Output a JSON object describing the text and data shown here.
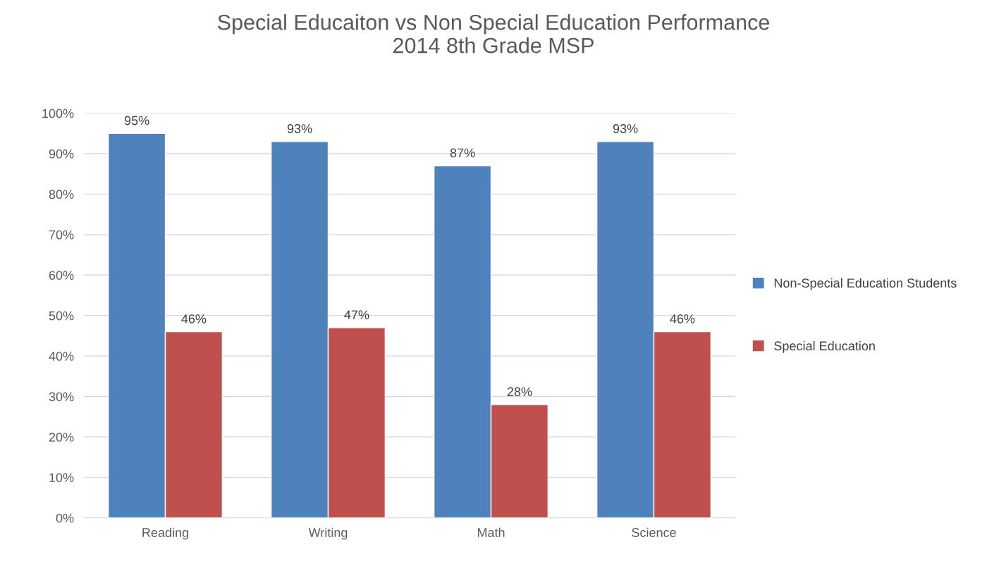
{
  "chart_data": {
    "type": "bar",
    "title": "Special Educaiton vs Non Special Education Performance\n2014 8th Grade MSP",
    "categories": [
      "Reading",
      "Writing",
      "Math",
      "Science"
    ],
    "series": [
      {
        "name": "Non-Special Education Students",
        "color": "#4f81bd",
        "values": [
          95,
          93,
          87,
          93
        ],
        "value_labels": [
          "95%",
          "93%",
          "87%",
          "93%"
        ]
      },
      {
        "name": "Special Education",
        "color": "#c0504d",
        "values": [
          46,
          47,
          28,
          46
        ],
        "value_labels": [
          "46%",
          "47%",
          "28%",
          "46%"
        ]
      }
    ],
    "ylim": [
      0,
      100
    ],
    "yticks": [
      {
        "value": 0,
        "label": "0%"
      },
      {
        "value": 10,
        "label": "10%"
      },
      {
        "value": 20,
        "label": "20%"
      },
      {
        "value": 30,
        "label": "30%"
      },
      {
        "value": 40,
        "label": "40%"
      },
      {
        "value": 50,
        "label": "50%"
      },
      {
        "value": 60,
        "label": "60%"
      },
      {
        "value": 70,
        "label": "70%"
      },
      {
        "value": 80,
        "label": "80%"
      },
      {
        "value": 90,
        "label": "90%"
      },
      {
        "value": 100,
        "label": "100%"
      }
    ],
    "grid": "y",
    "legend": "right"
  }
}
